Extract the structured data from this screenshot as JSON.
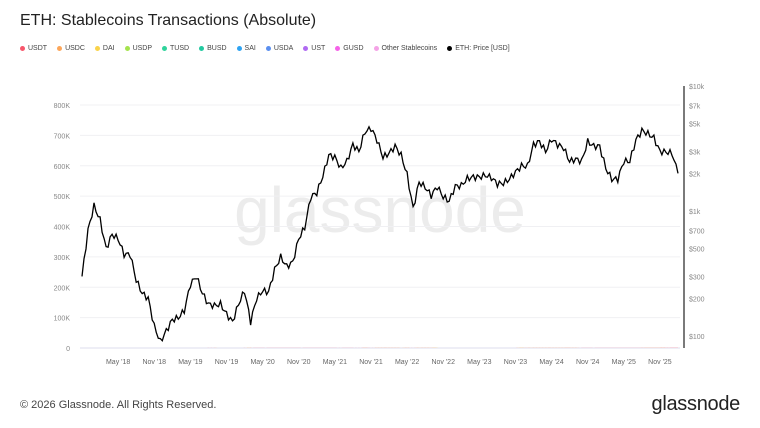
{
  "title": "ETH: Stablecoins Transactions (Absolute)",
  "footer": "© 2026 Glassnode. All Rights Reserved.",
  "logo": "glassnode",
  "watermark": "glassnode",
  "legend": [
    {
      "name": "USDT",
      "color": "#f7566b"
    },
    {
      "name": "USDC",
      "color": "#fca65a"
    },
    {
      "name": "DAI",
      "color": "#f9d34a"
    },
    {
      "name": "USDP",
      "color": "#a5e34d"
    },
    {
      "name": "TUSD",
      "color": "#2fd39b"
    },
    {
      "name": "BUSD",
      "color": "#22c9a0"
    },
    {
      "name": "SAI",
      "color": "#2ea3f2"
    },
    {
      "name": "USDA",
      "color": "#5b8fef"
    },
    {
      "name": "UST",
      "color": "#b06af2"
    },
    {
      "name": "GUSD",
      "color": "#f562e8"
    },
    {
      "name": "Other Stablecoins",
      "color": "#f4a3e6"
    },
    {
      "name": "ETH: Price [USD]",
      "color": "#000000"
    }
  ],
  "chart_data": {
    "type": "area",
    "title": "ETH: Stablecoins Transactions (Absolute)",
    "x_ticks": [
      "May '18",
      "Nov '18",
      "May '19",
      "Nov '19",
      "May '20",
      "Nov '20",
      "May '21",
      "Nov '21",
      "May '22",
      "Nov '22",
      "May '23",
      "Nov '23",
      "May '24",
      "Nov '24",
      "May '25",
      "Nov '25"
    ],
    "y_left": {
      "ticks": [
        "0",
        "100K",
        "200K",
        "300K",
        "400K",
        "500K",
        "600K",
        "700K",
        "800K"
      ],
      "range": [
        0,
        800000
      ]
    },
    "y_right": {
      "scale": "log",
      "ticks": [
        "$100",
        "$200",
        "$300",
        "$500",
        "$700",
        "$1k",
        "$2k",
        "$3k",
        "$5k",
        "$7k",
        "$10k"
      ],
      "range": [
        100,
        10000
      ]
    },
    "grid": true,
    "legend_position": "top-left",
    "x": [
      "2017-11",
      "2017-12",
      "2018-01",
      "2018-02",
      "2018-03",
      "2018-04",
      "2018-05",
      "2018-06",
      "2018-07",
      "2018-08",
      "2018-09",
      "2018-10",
      "2018-11",
      "2018-12",
      "2019-01",
      "2019-02",
      "2019-03",
      "2019-04",
      "2019-05",
      "2019-06",
      "2019-07",
      "2019-08",
      "2019-09",
      "2019-10",
      "2019-11",
      "2019-12",
      "2020-01",
      "2020-02",
      "2020-03",
      "2020-04",
      "2020-05",
      "2020-06",
      "2020-07",
      "2020-08",
      "2020-09",
      "2020-10",
      "2020-11",
      "2020-12",
      "2021-01",
      "2021-02",
      "2021-03",
      "2021-04",
      "2021-05",
      "2021-06",
      "2021-07",
      "2021-08",
      "2021-09",
      "2021-10",
      "2021-11",
      "2021-12",
      "2022-01",
      "2022-02",
      "2022-03",
      "2022-04",
      "2022-05",
      "2022-06",
      "2022-07",
      "2022-08",
      "2022-09",
      "2022-10",
      "2022-11",
      "2022-12",
      "2023-01",
      "2023-02",
      "2023-03",
      "2023-04",
      "2023-05",
      "2023-06",
      "2023-07",
      "2023-08",
      "2023-09",
      "2023-10",
      "2023-11",
      "2023-12",
      "2024-01",
      "2024-02",
      "2024-03",
      "2024-04",
      "2024-05",
      "2024-06",
      "2024-07",
      "2024-08",
      "2024-09",
      "2024-10",
      "2024-11",
      "2024-12",
      "2025-01",
      "2025-02",
      "2025-03",
      "2025-04",
      "2025-05",
      "2025-06",
      "2025-07",
      "2025-08",
      "2025-09",
      "2025-10",
      "2025-11",
      "2025-12",
      "2026-01",
      "2026-02"
    ],
    "series": [
      {
        "name": "USDT",
        "color": "#fd7b8a",
        "values": [
          0,
          0,
          0,
          0,
          0,
          0,
          0,
          0,
          0,
          0,
          0,
          0,
          0,
          0,
          1,
          2,
          4,
          8,
          15,
          30,
          45,
          150,
          180,
          100,
          100,
          110,
          120,
          140,
          160,
          180,
          200,
          210,
          230,
          250,
          240,
          220,
          210,
          200,
          210,
          220,
          200,
          190,
          200,
          180,
          170,
          180,
          170,
          160,
          170,
          160,
          150,
          160,
          150,
          140,
          160,
          170,
          150,
          140,
          140,
          140,
          130,
          130,
          130,
          125,
          130,
          125,
          120,
          130,
          120,
          115,
          120,
          130,
          135,
          140,
          145,
          150,
          160,
          150,
          160,
          150,
          150,
          160,
          160,
          170,
          180,
          190,
          200,
          210,
          210,
          220,
          240,
          260,
          300,
          330,
          360,
          400,
          450,
          500,
          560,
          600
        ]
      },
      {
        "name": "USDC",
        "color": "#fcae62",
        "values": [
          0,
          0,
          0,
          0,
          0,
          0,
          0,
          0,
          0,
          0,
          0,
          0,
          0,
          0,
          0,
          0,
          0,
          0,
          1,
          2,
          3,
          4,
          5,
          5,
          6,
          8,
          10,
          12,
          15,
          18,
          20,
          22,
          25,
          30,
          30,
          30,
          30,
          30,
          30,
          30,
          28,
          28,
          30,
          30,
          30,
          30,
          28,
          28,
          28,
          25,
          25,
          25,
          25,
          25,
          28,
          30,
          25,
          25,
          25,
          22,
          20,
          20,
          20,
          20,
          25,
          20,
          18,
          18,
          18,
          18,
          18,
          20,
          20,
          22,
          25,
          28,
          30,
          30,
          32,
          35,
          38,
          40,
          45,
          50,
          55,
          60,
          65,
          70,
          75,
          80,
          90,
          100,
          120,
          140,
          160,
          180,
          200,
          220,
          240,
          260
        ]
      },
      {
        "name": "DAI",
        "color": "#f9d34a",
        "values": [
          0,
          0,
          0,
          0,
          0,
          0,
          0,
          0,
          0,
          0,
          0,
          0,
          0,
          0,
          0,
          0,
          0,
          0,
          0,
          1,
          1,
          2,
          2,
          2,
          3,
          3,
          4,
          4,
          5,
          5,
          5,
          5,
          6,
          6,
          6,
          6,
          6,
          6,
          6,
          6,
          6,
          6,
          6,
          6,
          6,
          6,
          6,
          6,
          6,
          6,
          6,
          6,
          6,
          6,
          6,
          6,
          5,
          5,
          5,
          5,
          5,
          5,
          5,
          5,
          5,
          5,
          5,
          5,
          5,
          5,
          5,
          5,
          5,
          5,
          5,
          5,
          5,
          5,
          5,
          5,
          5,
          5,
          5,
          5,
          5,
          5,
          5,
          5,
          5,
          5,
          5,
          5,
          6,
          6,
          6,
          6,
          6,
          6,
          6,
          6
        ]
      },
      {
        "name": "ETH: Price [USD]",
        "color": "#000000",
        "axis": "right",
        "values": [
          300,
          700,
          1100,
          850,
          500,
          650,
          600,
          450,
          450,
          280,
          220,
          200,
          120,
          90,
          110,
          135,
          140,
          160,
          260,
          300,
          220,
          180,
          175,
          180,
          150,
          130,
          180,
          230,
          130,
          200,
          230,
          225,
          340,
          430,
          360,
          390,
          600,
          740,
          1300,
          1400,
          1900,
          2800,
          2700,
          2200,
          2500,
          3400,
          3000,
          4300,
          4600,
          3700,
          2700,
          2900,
          3300,
          2800,
          1950,
          1050,
          1700,
          1550,
          1330,
          1570,
          1300,
          1200,
          1580,
          1600,
          1820,
          1870,
          1870,
          1930,
          1850,
          1650,
          1670,
          1800,
          2050,
          2300,
          2280,
          3400,
          3600,
          3000,
          3750,
          3400,
          3200,
          2500,
          2600,
          2500,
          3600,
          3300,
          3300,
          2200,
          1800,
          1800,
          2500,
          2500,
          3700,
          4400,
          4150,
          3850,
          3000,
          2970,
          2900,
          2000
        ]
      }
    ]
  }
}
